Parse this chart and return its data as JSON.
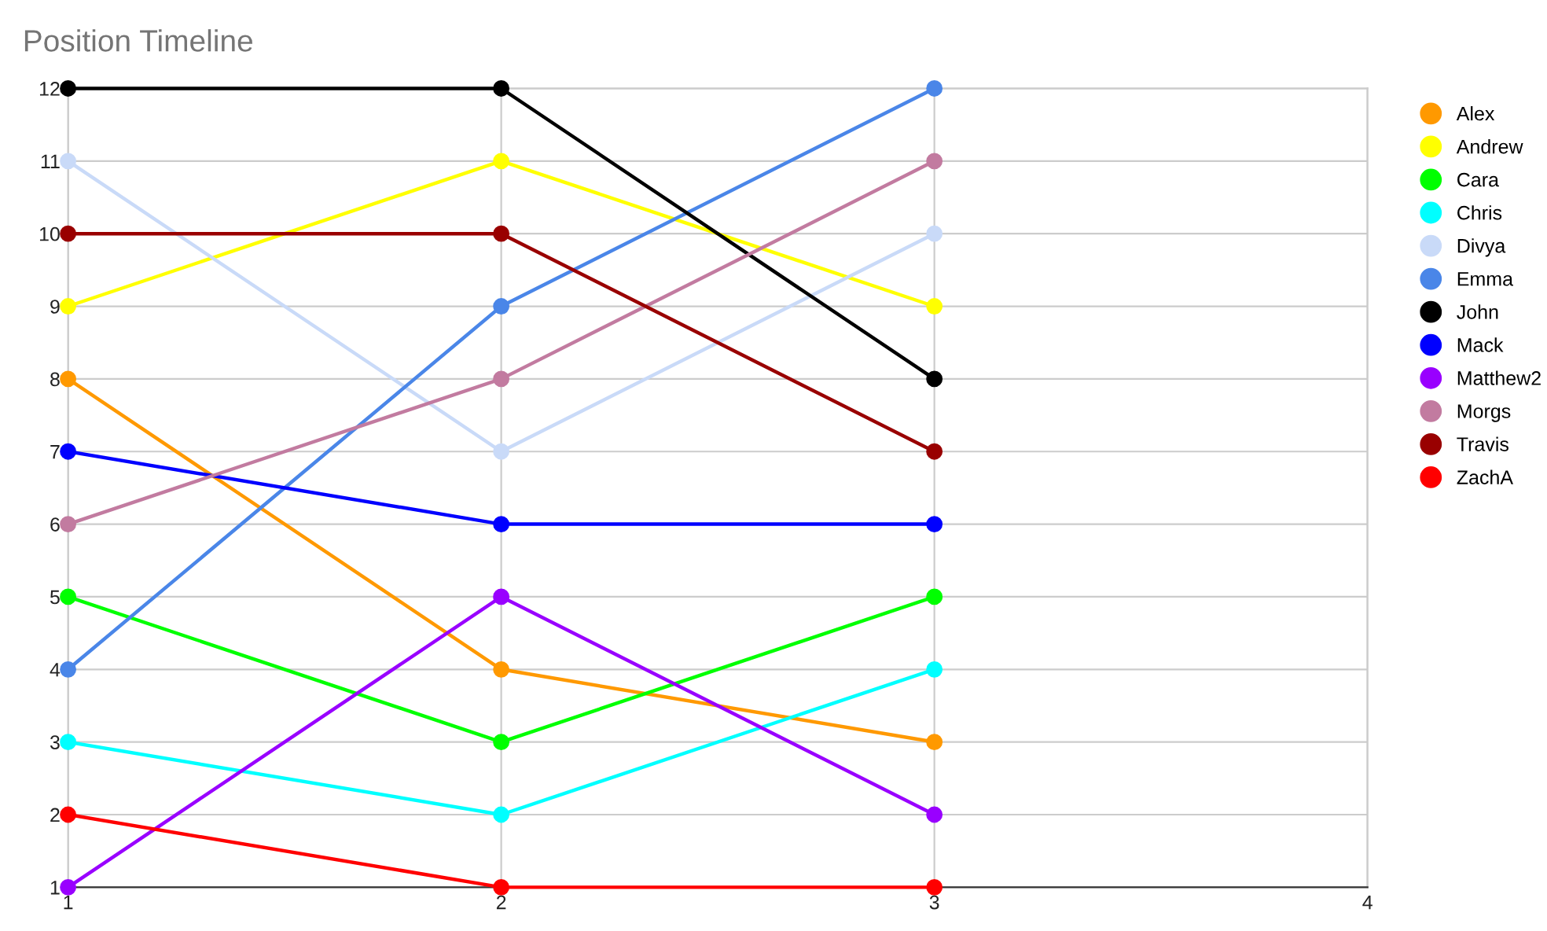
{
  "chart_data": {
    "type": "line",
    "title": "Position Timeline",
    "x": [
      1,
      2,
      3
    ],
    "xlim": [
      1,
      4
    ],
    "xticks": [
      1,
      2,
      3,
      4
    ],
    "ylim": [
      1,
      12
    ],
    "yticks": [
      1,
      2,
      3,
      4,
      5,
      6,
      7,
      8,
      9,
      10,
      11,
      12
    ],
    "grid": true,
    "legend": "right",
    "marker": "circle",
    "line_style": "solid",
    "series": [
      {
        "name": "Alex",
        "color": "#ff9900",
        "values": [
          8,
          4,
          3
        ]
      },
      {
        "name": "Andrew",
        "color": "#ffff00",
        "values": [
          9,
          11,
          9
        ]
      },
      {
        "name": "Cara",
        "color": "#00ff00",
        "values": [
          5,
          3,
          5
        ]
      },
      {
        "name": "Chris",
        "color": "#00ffff",
        "values": [
          3,
          2,
          4
        ]
      },
      {
        "name": "Divya",
        "color": "#c9daf8",
        "values": [
          11,
          7,
          10
        ]
      },
      {
        "name": "Emma",
        "color": "#4a86e8",
        "values": [
          4,
          9,
          12
        ]
      },
      {
        "name": "John",
        "color": "#000000",
        "values": [
          12,
          12,
          8
        ]
      },
      {
        "name": "Mack",
        "color": "#0000ff",
        "values": [
          7,
          6,
          6
        ]
      },
      {
        "name": "Matthew2",
        "color": "#9900ff",
        "values": [
          1,
          5,
          2
        ]
      },
      {
        "name": "Morgs",
        "color": "#c27ba0",
        "values": [
          6,
          8,
          11
        ]
      },
      {
        "name": "Travis",
        "color": "#990000",
        "values": [
          10,
          10,
          7
        ]
      },
      {
        "name": "ZachA",
        "color": "#ff0000",
        "values": [
          2,
          1,
          1
        ]
      }
    ]
  }
}
